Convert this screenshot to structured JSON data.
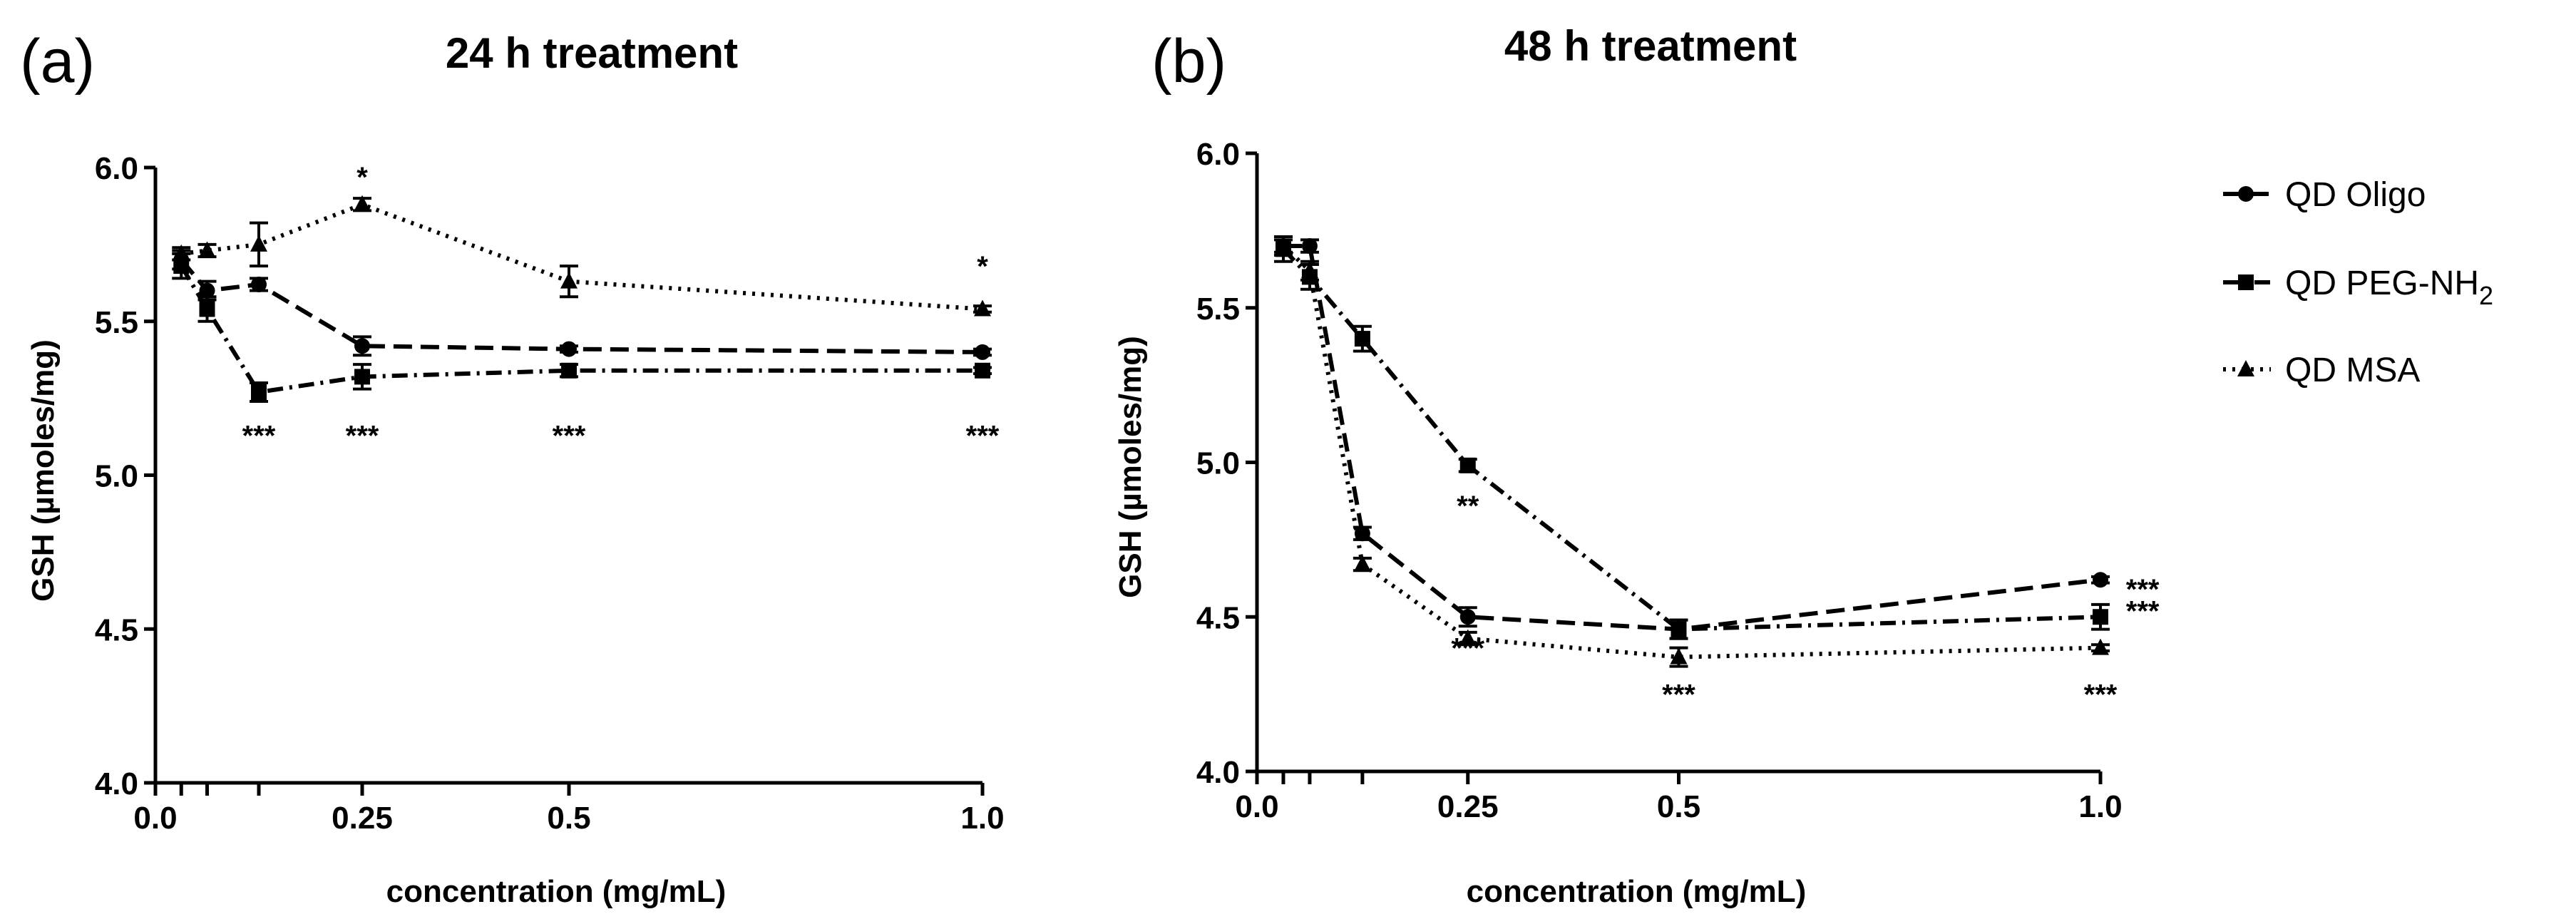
{
  "chart_data": [
    {
      "type": "line",
      "panel_label": "(a)",
      "title": "24 h  treatment",
      "xlabel": "concentration (mg/mL)",
      "ylabel": "GSH (µmoles/mg)",
      "xlim": [
        0,
        1.0
      ],
      "ylim": [
        4.0,
        6.0
      ],
      "xticks": [
        0.0,
        0.03125,
        0.0625,
        0.125,
        0.25,
        0.5,
        1.0
      ],
      "xtick_labels": [
        "0.0",
        "",
        "",
        "",
        "0.25",
        "0.5",
        "1.0"
      ],
      "yticks": [
        4.0,
        4.5,
        5.0,
        5.5,
        6.0
      ],
      "ytick_labels": [
        "4.0",
        "4.5",
        "5.0",
        "5.5",
        "6.0"
      ],
      "x": [
        0.03125,
        0.0625,
        0.125,
        0.25,
        0.5,
        1.0
      ],
      "series": [
        {
          "name": "QD Oligo",
          "marker": "circle",
          "dash": "long-dash",
          "values": [
            5.7,
            5.6,
            5.62,
            5.42,
            5.41,
            5.4
          ],
          "errors": [
            0.03,
            0.03,
            0.02,
            0.03,
            0.01,
            0.01
          ]
        },
        {
          "name": "QD PEG-NH2",
          "marker": "square",
          "dash": "dash-dot",
          "values": [
            5.68,
            5.54,
            5.27,
            5.32,
            5.34,
            5.34
          ],
          "errors": [
            0.04,
            0.04,
            0.03,
            0.04,
            0.02,
            0.01
          ]
        },
        {
          "name": "QD MSA",
          "marker": "triangle",
          "dash": "dotted",
          "values": [
            5.72,
            5.73,
            5.75,
            5.88,
            5.63,
            5.54
          ],
          "errors": [
            0.02,
            0.02,
            0.07,
            0.02,
            0.05,
            0.01
          ]
        }
      ],
      "annotations": [
        {
          "text": "*",
          "x": 0.25,
          "y": 5.97
        },
        {
          "text": "*",
          "x": 1.0,
          "y": 5.68
        },
        {
          "text": "***",
          "x": 0.125,
          "y": 5.13
        },
        {
          "text": "***",
          "x": 0.25,
          "y": 5.13
        },
        {
          "text": "***",
          "x": 0.5,
          "y": 5.13
        },
        {
          "text": "***",
          "x": 1.0,
          "y": 5.13
        }
      ]
    },
    {
      "type": "line",
      "panel_label": "(b)",
      "title": "48 h treatment",
      "xlabel": "concentration (mg/mL)",
      "ylabel": "GSH (µmoles/mg)",
      "xlim": [
        0,
        1.0
      ],
      "ylim": [
        4.0,
        6.0
      ],
      "xticks": [
        0.0,
        0.03125,
        0.0625,
        0.125,
        0.25,
        0.5,
        1.0
      ],
      "xtick_labels": [
        "0.0",
        "",
        "",
        "",
        "0.25",
        "0.5",
        "1.0"
      ],
      "yticks": [
        4.0,
        4.5,
        5.0,
        5.5,
        6.0
      ],
      "ytick_labels": [
        "4.0",
        "4.5",
        "5.0",
        "5.5",
        "6.0"
      ],
      "x": [
        0.03125,
        0.0625,
        0.125,
        0.25,
        0.5,
        1.0
      ],
      "series": [
        {
          "name": "QD Oligo",
          "marker": "circle",
          "dash": "long-dash",
          "values": [
            5.7,
            5.7,
            4.77,
            4.5,
            4.46,
            4.62
          ],
          "errors": [
            0.03,
            0.02,
            0.02,
            0.03,
            0.03,
            0.01
          ]
        },
        {
          "name": "QD PEG-NH2",
          "marker": "square",
          "dash": "dash-dot",
          "values": [
            5.69,
            5.6,
            5.4,
            4.99,
            4.46,
            4.5
          ],
          "errors": [
            0.04,
            0.04,
            0.04,
            0.02,
            0.03,
            0.04
          ]
        },
        {
          "name": "QD MSA",
          "marker": "triangle",
          "dash": "dotted",
          "values": [
            5.7,
            5.62,
            4.67,
            4.43,
            4.37,
            4.4
          ],
          "errors": [
            0.02,
            0.03,
            0.02,
            0.02,
            0.03,
            0.01
          ]
        }
      ],
      "annotations": [
        {
          "text": "**",
          "x": 0.25,
          "y": 4.86
        },
        {
          "text": "***",
          "x": 0.25,
          "y": 4.4
        },
        {
          "text": "***",
          "x": 0.5,
          "y": 4.25
        },
        {
          "text": "***",
          "x": 1.0,
          "y": 4.25
        },
        {
          "text": "***",
          "x": 1.05,
          "y": 4.59
        },
        {
          "text": "***",
          "x": 1.05,
          "y": 4.52
        }
      ]
    }
  ],
  "legend": {
    "placement": "top-right",
    "items": [
      {
        "label": "QD Oligo",
        "marker": "circle",
        "dash": "long-dash"
      },
      {
        "label": "QD PEG-NH",
        "subscript": "2",
        "marker": "square",
        "dash": "dash-dot"
      },
      {
        "label": "QD MSA",
        "marker": "triangle",
        "dash": "dotted"
      }
    ]
  }
}
